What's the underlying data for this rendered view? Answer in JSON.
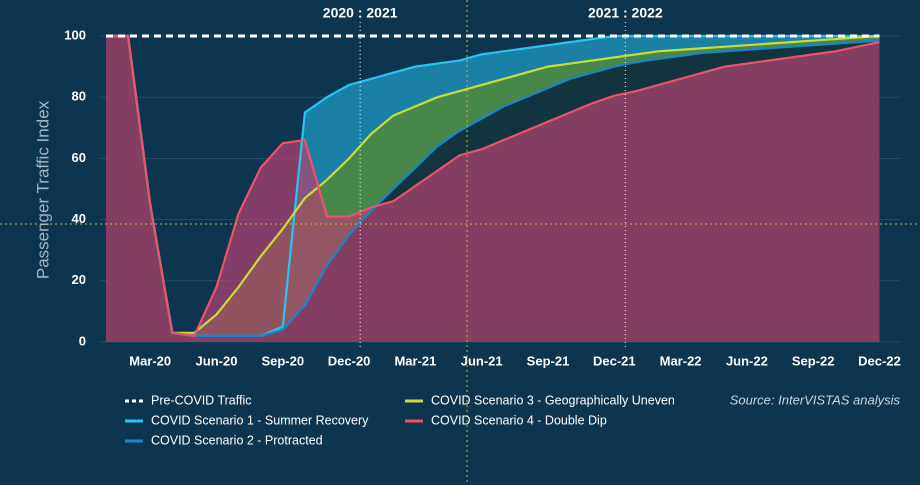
{
  "chart_data": {
    "type": "area",
    "y_label": "Passenger Traffic Index",
    "source": "Source: InterVISTAS analysis",
    "annotations": [
      "2020 : 2021",
      "2021 : 2022"
    ],
    "categories": [
      null,
      null,
      "Mar-20",
      null,
      null,
      "Jun-20",
      null,
      null,
      "Sep-20",
      null,
      null,
      "Dec-20",
      null,
      null,
      "Mar-21",
      null,
      null,
      "Jun-21",
      null,
      null,
      "Sep-21",
      null,
      null,
      "Dec-21",
      null,
      null,
      "Mar-22",
      null,
      null,
      "Jun-22",
      null,
      null,
      "Sep-22",
      null,
      null,
      "Dec-22"
    ],
    "ylim": [
      0,
      100
    ],
    "yticks": [
      0,
      20,
      40,
      60,
      80,
      100
    ],
    "grid": true,
    "series": [
      {
        "name": "Pre-COVID Traffic",
        "color": "#ffffff",
        "style": "dashed",
        "values": [
          100,
          100,
          100,
          100,
          100,
          100,
          100,
          100,
          100,
          100,
          100,
          100,
          100,
          100,
          100,
          100,
          100,
          100,
          100,
          100,
          100,
          100,
          100,
          100,
          100,
          100,
          100,
          100,
          100,
          100,
          100,
          100,
          100,
          100,
          100,
          100
        ]
      },
      {
        "name": "COVID Scenario 1 - Summer Recovery",
        "color": "#29c4ef",
        "fill": "#1d8db5",
        "values": [
          100,
          100,
          45,
          3,
          2,
          2,
          2,
          2,
          5,
          75,
          80,
          84,
          86,
          88,
          90,
          91,
          92,
          94,
          95,
          96,
          97,
          98,
          99,
          100,
          100,
          100,
          100,
          100,
          100,
          100,
          100,
          100,
          100,
          100,
          100,
          100
        ]
      },
      {
        "name": "COVID Scenario 2 - Protracted",
        "color": "#1a86c8",
        "fill": "#08263d",
        "values": [
          100,
          100,
          45,
          3,
          2,
          2,
          2,
          2,
          4,
          12,
          25,
          35,
          43,
          50,
          57,
          64,
          69,
          73,
          77,
          80,
          83,
          86,
          88,
          90,
          91.5,
          92.5,
          93.5,
          94.5,
          95,
          95.5,
          96,
          96.5,
          97,
          97.5,
          98,
          98.5
        ]
      },
      {
        "name": "COVID Scenario 3 - Geographically Uneven",
        "color": "#c8dc3c",
        "fill": "#4f8a3a",
        "values": [
          100,
          100,
          45,
          3,
          3,
          9,
          18,
          28,
          37,
          47,
          53,
          60,
          68,
          74,
          77,
          80,
          82,
          84,
          86,
          88,
          90,
          91,
          92,
          93,
          94,
          95,
          95.5,
          96,
          96.5,
          97,
          97.5,
          98,
          98.5,
          99,
          99.5,
          100
        ]
      },
      {
        "name": "COVID Scenario 4 - Double Dip",
        "color": "#e8546a",
        "fill": "#b0436f",
        "values": [
          100,
          100,
          45,
          3,
          2,
          18,
          42,
          57,
          65,
          66,
          41,
          41,
          44,
          46,
          51,
          56,
          61,
          63,
          66,
          69,
          72,
          75,
          78,
          80.5,
          82,
          84,
          86,
          88,
          90,
          91,
          92,
          93,
          94,
          95,
          96.5,
          98
        ]
      }
    ]
  }
}
